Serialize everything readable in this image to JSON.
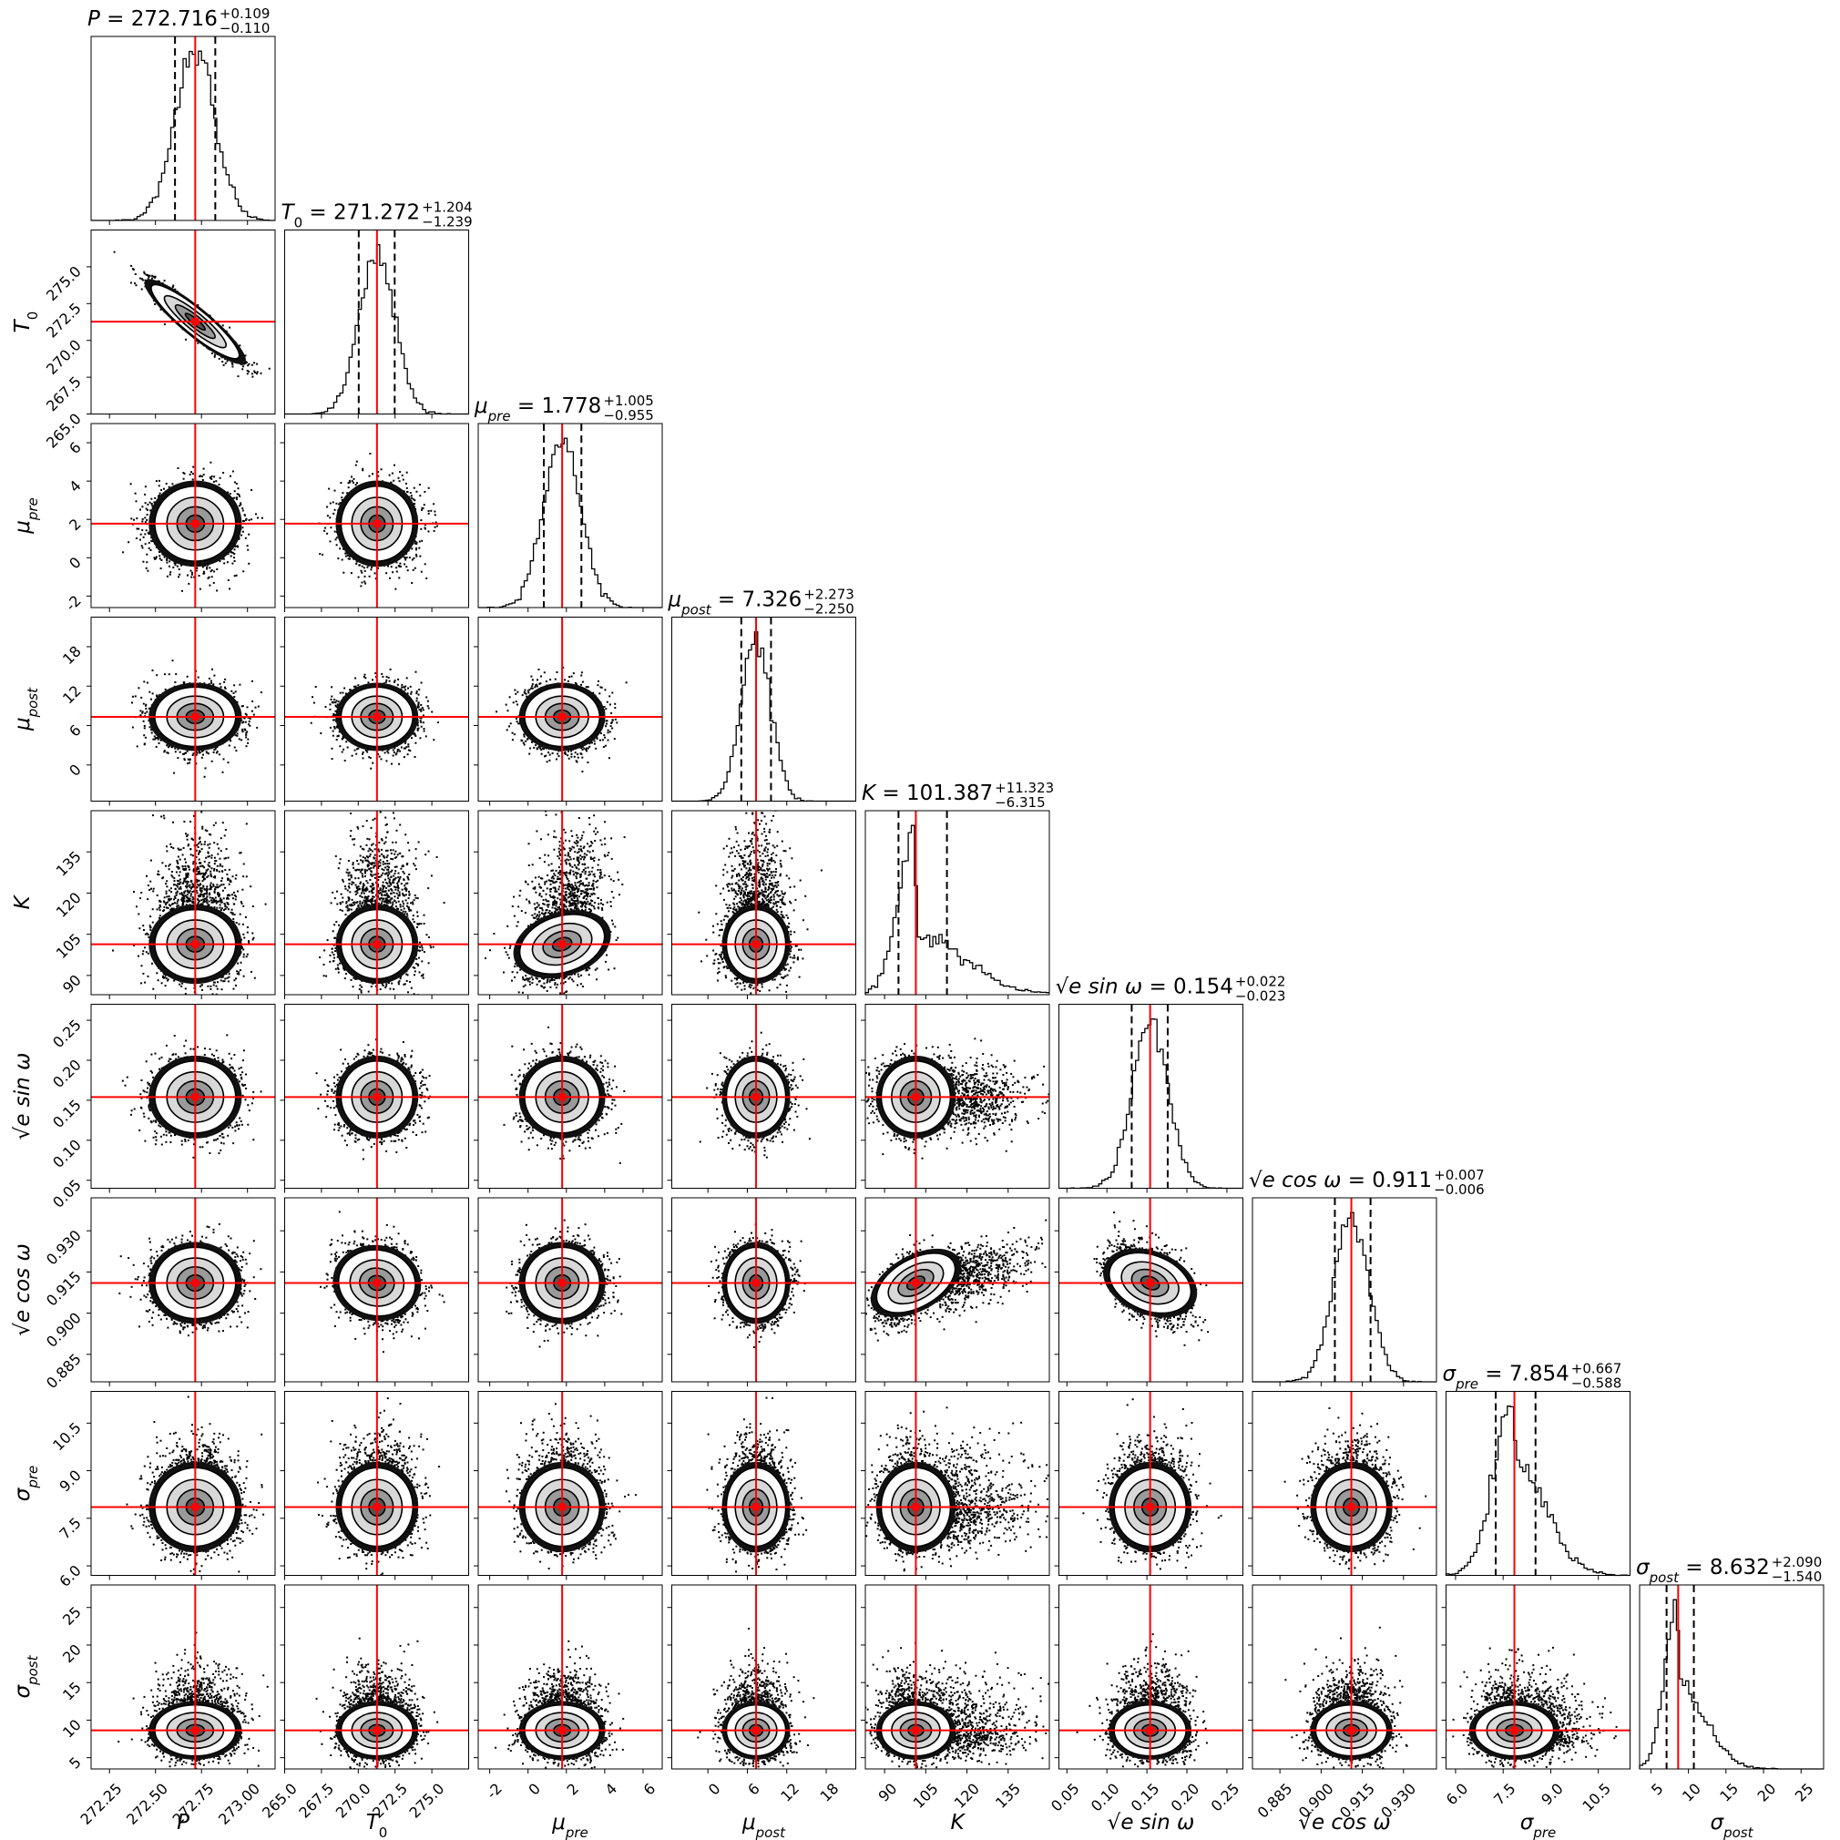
{
  "chart_data": {
    "type": "corner",
    "params": [
      {
        "key": "P",
        "range": [
          272.15,
          273.15
        ],
        "ticks": [
          "272.25",
          "272.50",
          "272.75",
          "273.00"
        ],
        "tickvals": [
          272.25,
          272.5,
          272.75,
          273.0
        ],
        "median": 272.716,
        "lo": 272.606,
        "hi": 272.825,
        "sigma": 0.11,
        "skew": 0.0
      },
      {
        "key": "T0",
        "range": [
          265.0,
          277.5
        ],
        "ticks": [
          "265.0",
          "267.5",
          "270.0",
          "272.5",
          "275.0"
        ],
        "tickvals": [
          265.0,
          267.5,
          270.0,
          272.5,
          275.0
        ],
        "median": 271.272,
        "lo": 270.033,
        "hi": 272.476,
        "sigma": 1.22,
        "skew": 0.0
      },
      {
        "key": "mu_pre",
        "range": [
          -2.6,
          7.0
        ],
        "ticks": [
          "-2",
          "0",
          "2",
          "4",
          "6"
        ],
        "tickvals": [
          -2,
          0,
          2,
          4,
          6
        ],
        "median": 1.778,
        "lo": 0.823,
        "hi": 2.783,
        "sigma": 0.98,
        "skew": 0.0
      },
      {
        "key": "mu_post",
        "range": [
          -5.5,
          22.5
        ],
        "ticks": [
          "0",
          "6",
          "12",
          "18"
        ],
        "tickvals": [
          0,
          6,
          12,
          18
        ],
        "median": 7.326,
        "lo": 5.076,
        "hi": 9.599,
        "sigma": 2.26,
        "skew": 0.0
      },
      {
        "key": "K",
        "range": [
          83.0,
          150.0
        ],
        "ticks": [
          "90",
          "105",
          "120",
          "135"
        ],
        "tickvals": [
          90,
          105,
          120,
          135
        ],
        "median": 101.387,
        "lo": 95.072,
        "hi": 112.71,
        "sigma": 6.3,
        "skew": 1.0
      },
      {
        "key": "sinw",
        "range": [
          0.04,
          0.27
        ],
        "ticks": [
          "0.05",
          "0.10",
          "0.15",
          "0.20",
          "0.25"
        ],
        "tickvals": [
          0.05,
          0.1,
          0.15,
          0.2,
          0.25
        ],
        "median": 0.154,
        "lo": 0.131,
        "hi": 0.176,
        "sigma": 0.0225,
        "skew": 0.0
      },
      {
        "key": "cosw",
        "range": [
          0.875,
          0.942
        ],
        "ticks": [
          "0.885",
          "0.900",
          "0.915",
          "0.930"
        ],
        "tickvals": [
          0.885,
          0.9,
          0.915,
          0.93
        ],
        "median": 0.911,
        "lo": 0.905,
        "hi": 0.918,
        "sigma": 0.0065,
        "skew": 0.0
      },
      {
        "key": "sigma_pre",
        "range": [
          5.7,
          11.5
        ],
        "ticks": [
          "6.0",
          "7.5",
          "9.0",
          "10.5"
        ],
        "tickvals": [
          6.0,
          7.5,
          9.0,
          10.5
        ],
        "median": 7.854,
        "lo": 7.266,
        "hi": 8.521,
        "sigma": 0.62,
        "skew": 0.3
      },
      {
        "key": "sigma_post",
        "range": [
          3.5,
          28.0
        ],
        "ticks": [
          "5",
          "10",
          "15",
          "20",
          "25"
        ],
        "tickvals": [
          5,
          10,
          15,
          20,
          25
        ],
        "median": 8.632,
        "lo": 7.092,
        "hi": 10.722,
        "sigma": 1.7,
        "skew": 0.6
      }
    ],
    "labels": [
      {
        "base": "P",
        "sub": ""
      },
      {
        "base": "T",
        "sub": "0"
      },
      {
        "base": "μ",
        "sub": "pre"
      },
      {
        "base": "μ",
        "sub": "post"
      },
      {
        "base": "K",
        "sub": ""
      },
      {
        "base": "√e sin ω",
        "sub": ""
      },
      {
        "base": "√e cos ω",
        "sub": ""
      },
      {
        "base": "σ",
        "sub": "pre"
      },
      {
        "base": "σ",
        "sub": "post"
      }
    ],
    "titles": [
      {
        "value": "272.716",
        "plus": "+0.109",
        "minus": "−0.110"
      },
      {
        "value": "271.272",
        "plus": "+1.204",
        "minus": "−1.239"
      },
      {
        "value": "1.778",
        "plus": "+1.005",
        "minus": "−0.955"
      },
      {
        "value": "7.326",
        "plus": "+2.273",
        "minus": "−2.250"
      },
      {
        "value": "101.387",
        "plus": "+11.323",
        "minus": "−6.315"
      },
      {
        "value": "0.154",
        "plus": "+0.022",
        "minus": "−0.023"
      },
      {
        "value": "0.911",
        "plus": "+0.007",
        "minus": "−0.006"
      },
      {
        "value": "7.854",
        "plus": "+0.667",
        "minus": "−0.588"
      },
      {
        "value": "8.632",
        "plus": "+2.090",
        "minus": "−1.540"
      }
    ],
    "correlations": [
      {
        "pair": [
          "T0",
          "P"
        ],
        "rho": -0.93
      },
      {
        "pair": [
          "cosw",
          "sinw"
        ],
        "rho": -0.4
      },
      {
        "pair": [
          "cosw",
          "K"
        ],
        "rho": 0.55
      },
      {
        "pair": [
          "K",
          "mu_pre"
        ],
        "rho": 0.35
      },
      {
        "pair": [
          "cosw",
          "T0"
        ],
        "rho": -0.15
      }
    ],
    "truth_line_color": "#ff0000",
    "quantile_lines": "dashed",
    "grid": false
  }
}
